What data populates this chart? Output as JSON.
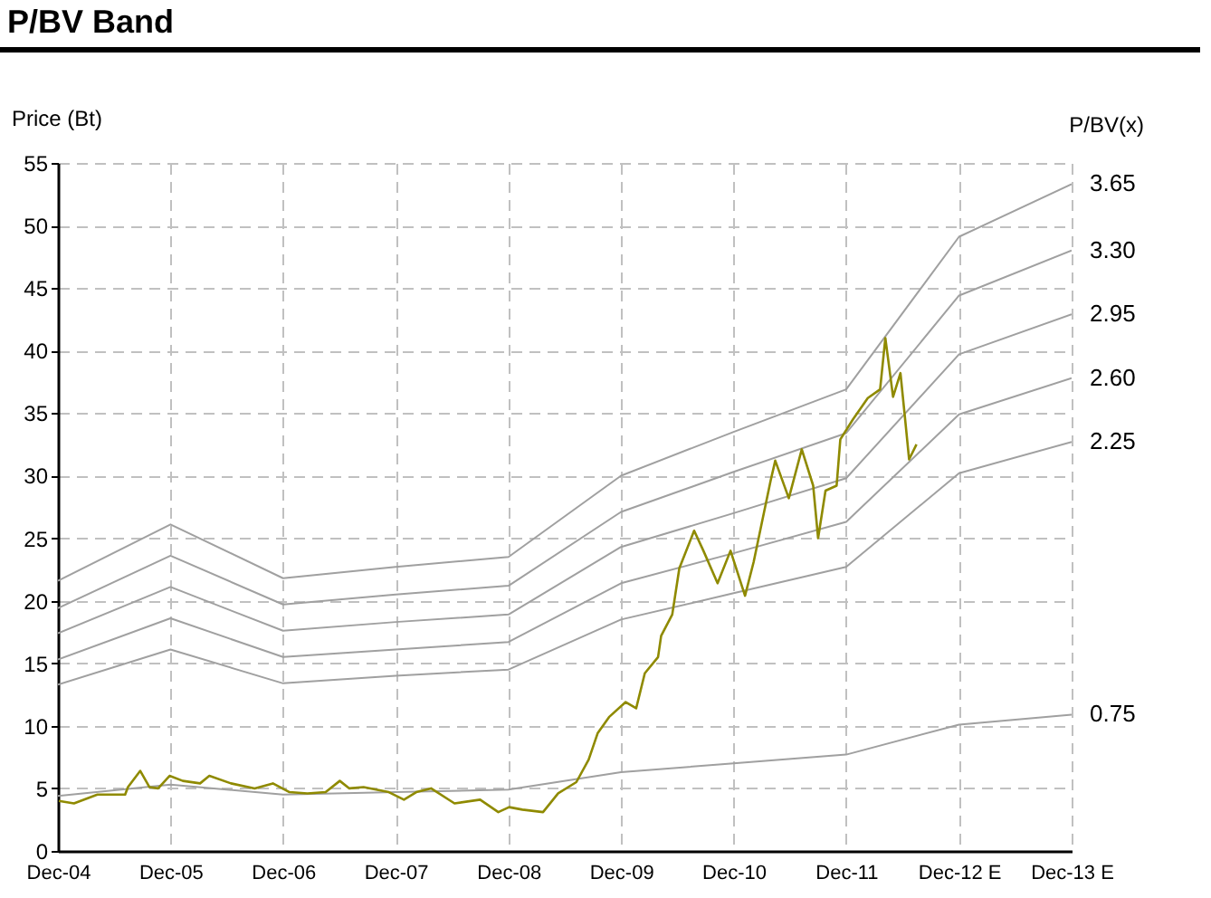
{
  "chart_data": {
    "type": "line",
    "title": "P/BV Band",
    "ylabel": "Price (Bt)",
    "legend_title": "P/BV(x)",
    "xlim": [
      "2004-12-31",
      "2013-12-31"
    ],
    "xticks": [
      {
        "value": "2004-12-31",
        "label": "Dec-04"
      },
      {
        "value": "2005-12-31",
        "label": "Dec-05"
      },
      {
        "value": "2006-12-31",
        "label": "Dec-06"
      },
      {
        "value": "2007-12-31",
        "label": "Dec-07"
      },
      {
        "value": "2008-12-31",
        "label": "Dec-08"
      },
      {
        "value": "2009-12-31",
        "label": "Dec-09"
      },
      {
        "value": "2010-12-31",
        "label": "Dec-10"
      },
      {
        "value": "2011-12-31",
        "label": "Dec-11"
      },
      {
        "value": "2012-12-31",
        "label": "Dec-12 E"
      },
      {
        "value": "2013-12-31",
        "label": "Dec-13 E"
      }
    ],
    "ylim": [
      0,
      55
    ],
    "yticks": [
      0,
      5,
      10,
      15,
      20,
      25,
      30,
      35,
      40,
      45,
      50,
      55
    ],
    "grid": true,
    "marker": "none",
    "line_style": "solid",
    "series": [
      {
        "name": "3.65",
        "color": "#a0a0a0",
        "x": [
          "2004-12-31",
          "2005-12-31",
          "2006-12-31",
          "2007-12-31",
          "2008-12-31",
          "2009-12-31",
          "2010-12-31",
          "2011-12-31",
          "2012-12-31",
          "2013-12-31"
        ],
        "values": [
          21.6,
          26.1,
          21.8,
          22.7,
          23.5,
          30.0,
          33.5,
          36.9,
          49.1,
          53.3
        ]
      },
      {
        "name": "3.30",
        "color": "#a0a0a0",
        "x": [
          "2004-12-31",
          "2005-12-31",
          "2006-12-31",
          "2007-12-31",
          "2008-12-31",
          "2009-12-31",
          "2010-12-31",
          "2011-12-31",
          "2012-12-31",
          "2013-12-31"
        ],
        "values": [
          19.4,
          23.6,
          19.7,
          20.5,
          21.2,
          27.1,
          30.3,
          33.4,
          44.4,
          48.0
        ]
      },
      {
        "name": "2.95",
        "color": "#a0a0a0",
        "x": [
          "2004-12-31",
          "2005-12-31",
          "2006-12-31",
          "2007-12-31",
          "2008-12-31",
          "2009-12-31",
          "2010-12-31",
          "2011-12-31",
          "2012-12-31",
          "2013-12-31"
        ],
        "values": [
          17.4,
          21.1,
          17.6,
          18.3,
          18.9,
          24.3,
          27.0,
          29.8,
          39.7,
          42.9
        ]
      },
      {
        "name": "2.60",
        "color": "#a0a0a0",
        "x": [
          "2004-12-31",
          "2005-12-31",
          "2006-12-31",
          "2007-12-31",
          "2008-12-31",
          "2009-12-31",
          "2010-12-31",
          "2011-12-31",
          "2012-12-31",
          "2013-12-31"
        ],
        "values": [
          15.3,
          18.6,
          15.5,
          16.1,
          16.7,
          21.4,
          23.8,
          26.3,
          34.9,
          37.8
        ]
      },
      {
        "name": "2.25",
        "color": "#a0a0a0",
        "x": [
          "2004-12-31",
          "2005-12-31",
          "2006-12-31",
          "2007-12-31",
          "2008-12-31",
          "2009-12-31",
          "2010-12-31",
          "2011-12-31",
          "2012-12-31",
          "2013-12-31"
        ],
        "values": [
          13.3,
          16.1,
          13.4,
          14.0,
          14.5,
          18.5,
          20.6,
          22.7,
          30.2,
          32.7
        ]
      },
      {
        "name": "0.75",
        "color": "#a0a0a0",
        "x": [
          "2004-12-31",
          "2005-12-31",
          "2006-12-31",
          "2007-12-31",
          "2008-12-31",
          "2009-12-31",
          "2010-12-31",
          "2011-12-31",
          "2012-12-31",
          "2013-12-31"
        ],
        "values": [
          4.4,
          5.3,
          4.5,
          4.7,
          4.9,
          6.3,
          7.0,
          7.7,
          10.1,
          10.9
        ]
      },
      {
        "color": "#8f8a00",
        "x": [
          "2005-01-03",
          "2005-02-21",
          "2005-05-08",
          "2005-08-06",
          "2005-08-15",
          "2005-09-24",
          "2005-10-24",
          "2005-11-21",
          "2005-12-28",
          "2006-02-09",
          "2006-04-06",
          "2006-05-06",
          "2006-07-15",
          "2006-09-30",
          "2006-11-28",
          "2007-01-21",
          "2007-03-20",
          "2007-05-18",
          "2007-07-03",
          "2007-08-03",
          "2007-09-18",
          "2007-12-09",
          "2008-01-27",
          "2008-03-07",
          "2008-04-24",
          "2008-07-09",
          "2008-09-30",
          "2008-11-28",
          "2009-01-02",
          "2009-02-14",
          "2009-04-22",
          "2009-06-10",
          "2009-08-08",
          "2009-09-17",
          "2009-10-16",
          "2009-11-22",
          "2010-01-15",
          "2010-02-18",
          "2010-03-18",
          "2010-04-30",
          "2010-05-10",
          "2010-06-15",
          "2010-07-08",
          "2010-08-25",
          "2010-09-24",
          "2010-11-09",
          "2010-12-21",
          "2011-02-06",
          "2011-03-06",
          "2011-04-30",
          "2011-05-15",
          "2011-06-28",
          "2011-08-09",
          "2011-09-15",
          "2011-10-01",
          "2011-10-25",
          "2011-11-30",
          "2011-12-12",
          "2012-01-22",
          "2012-03-10",
          "2012-04-19",
          "2012-05-06",
          "2012-05-31",
          "2012-06-24",
          "2012-07-10",
          "2012-07-22",
          "2012-08-15"
        ],
        "values": [
          4.0,
          3.8,
          4.5,
          4.5,
          5.1,
          6.4,
          5.1,
          5.0,
          6.0,
          5.6,
          5.4,
          6.0,
          5.4,
          5.0,
          5.4,
          4.7,
          4.6,
          4.7,
          5.6,
          5.0,
          5.1,
          4.7,
          4.1,
          4.7,
          5.0,
          3.8,
          4.1,
          3.1,
          3.5,
          3.3,
          3.1,
          4.6,
          5.5,
          7.3,
          9.4,
          10.7,
          11.9,
          11.4,
          14.2,
          15.5,
          17.2,
          18.9,
          22.6,
          25.6,
          24.0,
          21.4,
          24.0,
          20.4,
          23.1,
          29.6,
          31.2,
          28.2,
          32.1,
          29.2,
          25.0,
          28.8,
          29.2,
          32.9,
          34.5,
          36.2,
          36.9,
          41.0,
          36.3,
          38.2,
          34.3,
          31.3,
          32.5
        ]
      }
    ]
  }
}
